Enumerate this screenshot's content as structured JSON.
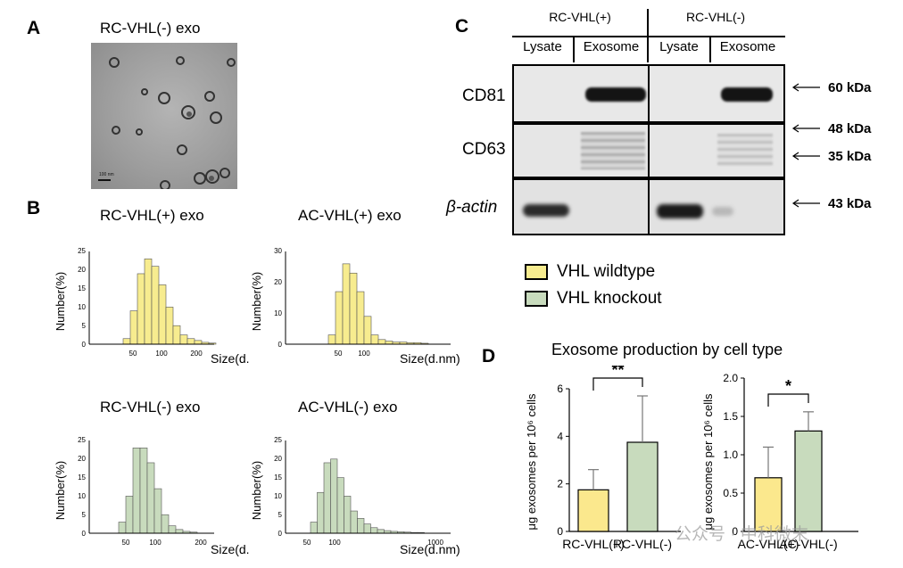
{
  "panels": {
    "a": "A",
    "b": "B",
    "c": "C",
    "d": "D"
  },
  "tem": {
    "title": "RC-VHL(-) exo",
    "scale_label": "100 nm"
  },
  "histograms": [
    {
      "title": "RC-VHL(+) exo",
      "ylabel": "Number(%)",
      "xlabel": "Size(d.nm)",
      "yticks": [
        "0",
        "5",
        "10",
        "15",
        "20",
        "25"
      ],
      "xticks": [
        "50",
        "100",
        "200"
      ],
      "ymax": 25,
      "fill": "#f7ec8f",
      "values": [
        1.5,
        9,
        19,
        23,
        21,
        16,
        10,
        5,
        2.5,
        1.5,
        1,
        0.5,
        0.3
      ]
    },
    {
      "title": "AC-VHL(+) exo",
      "ylabel": "Number(%)",
      "xlabel": "Size(d.nm)",
      "yticks": [
        "0",
        "10",
        "20",
        "30"
      ],
      "xticks": [
        "50",
        "100"
      ],
      "ymax": 30,
      "fill": "#f7ec8f",
      "values": [
        3,
        17,
        26,
        23,
        17,
        9,
        3,
        1.5,
        1,
        0.7,
        0.7,
        0.5,
        0.5,
        0.3
      ]
    },
    {
      "title": "RC-VHL(-) exo",
      "ylabel": "Number(%)",
      "xlabel": "Size(d.nm)",
      "yticks": [
        "0",
        "5",
        "10",
        "15",
        "20",
        "25"
      ],
      "xticks": [
        "50",
        "100",
        "200"
      ],
      "ymax": 25,
      "fill": "#c8dbbd",
      "values": [
        3,
        10,
        23,
        23,
        19,
        12,
        5,
        2,
        1,
        0.5,
        0.3
      ]
    },
    {
      "title": "AC-VHL(-) exo",
      "ylabel": "Number(%)",
      "xlabel": "Size(d.nm)",
      "yticks": [
        "0",
        "5",
        "10",
        "15",
        "20",
        "25"
      ],
      "xticks": [
        "50",
        "100",
        "1000"
      ],
      "ymax": 25,
      "fill": "#c8dbbd",
      "values": [
        3,
        11,
        19,
        20,
        15,
        10,
        6,
        4,
        2.5,
        1.5,
        1,
        0.7,
        0.5,
        0.4,
        0.3,
        0.2,
        0.2
      ]
    }
  ],
  "western_blot": {
    "groups": [
      "RC-VHL(+)",
      "RC-VHL(-)"
    ],
    "lanes": [
      "Lysate",
      "Exosome",
      "Lysate",
      "Exosome"
    ],
    "rows": [
      "CD81",
      "CD63",
      "β-actin"
    ],
    "markers": [
      "60 kDa",
      "48 kDa",
      "35 kDa",
      "43 kDa"
    ]
  },
  "legend": {
    "items": [
      {
        "label": "VHL wildtype",
        "color": "#f7ec8f"
      },
      {
        "label": "VHL knockout",
        "color": "#c8dbbd"
      }
    ]
  },
  "panel_d": {
    "title": "Exosome production by cell type"
  },
  "chart_data": [
    {
      "type": "bar",
      "categories": [
        "RC-VHL(+)",
        "RC-VHL(-)"
      ],
      "values": [
        1.75,
        3.75
      ],
      "errors": [
        0.85,
        1.95
      ],
      "colors": [
        "#fbe88d",
        "#c8dbbd"
      ],
      "ylabel": "μg exosomes per 10⁶ cells",
      "ylim": [
        0,
        6
      ],
      "yticks": [
        "0",
        "2",
        "4",
        "6"
      ],
      "significance": "**"
    },
    {
      "type": "bar",
      "categories": [
        "AC-VHL(+)",
        "AC-VHL(-)"
      ],
      "values": [
        0.7,
        1.31
      ],
      "errors": [
        0.4,
        0.25
      ],
      "colors": [
        "#fbe88d",
        "#c8dbbd"
      ],
      "ylabel": "μg exosomes per 10⁶ cells",
      "ylim": [
        0,
        2
      ],
      "yticks": [
        "0",
        "0.5",
        "1.0",
        "1.5",
        "2.0"
      ],
      "significance": "*"
    }
  ],
  "watermark": {
    "text": "公众号 · 中科微末"
  }
}
